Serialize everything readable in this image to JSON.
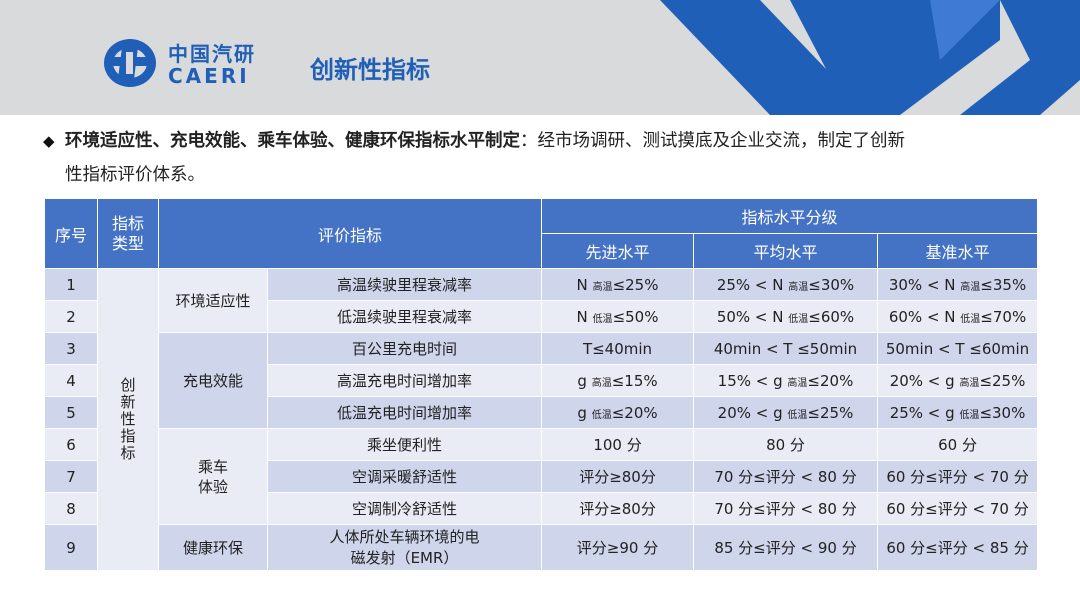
{
  "header": {
    "brand_cn": "中国汽研",
    "brand_en": "CAERI",
    "slide_title": "创新性指标"
  },
  "intro": {
    "bold": "环境适应性、充电效能、乘车体验、健康环保指标水平制定",
    "text": "：经市场调研、测试摸底及企业交流，制定了创新",
    "text2": "性指标评价体系。"
  },
  "table": {
    "headers": {
      "no": "序号",
      "type": "指标类型",
      "indicator": "评价指标",
      "level_group": "指标水平分级",
      "advanced": "先进水平",
      "average": "平均水平",
      "baseline": "基准水平"
    },
    "type_label": "创新性指标",
    "groups": {
      "env": "环境适应性",
      "charge": "充电效能",
      "ride": "乘车体验",
      "health": "健康环保"
    },
    "rows": [
      {
        "no": "1",
        "name": "高温续驶里程衰减率",
        "adv": [
          "N",
          "高温",
          "≤25%"
        ],
        "avg": [
          "25% < N",
          "高温",
          "≤30%"
        ],
        "base": [
          "30% < N",
          "高温",
          "≤35%"
        ]
      },
      {
        "no": "2",
        "name": "低温续驶里程衰减率",
        "adv": [
          "N",
          "低温",
          "≤50%"
        ],
        "avg": [
          "50% < N",
          "低温",
          "≤60%"
        ],
        "base": [
          "60% < N",
          "低温",
          "≤70%"
        ]
      },
      {
        "no": "3",
        "name": "百公里充电时间",
        "adv": [
          "T≤40min"
        ],
        "avg": [
          "40min < T ≤50min"
        ],
        "base": [
          "50min < T ≤60min"
        ]
      },
      {
        "no": "4",
        "name": "高温充电时间增加率",
        "adv": [
          "g",
          "高温",
          "≤15%"
        ],
        "avg": [
          "15% < g",
          "高温",
          "≤20%"
        ],
        "base": [
          "20% < g",
          "高温",
          "≤25%"
        ]
      },
      {
        "no": "5",
        "name": "低温充电时间增加率",
        "adv": [
          "g",
          "低温",
          "≤20%"
        ],
        "avg": [
          "20% < g",
          "低温",
          "≤25%"
        ],
        "base": [
          "25% < g",
          "低温",
          "≤30%"
        ]
      },
      {
        "no": "6",
        "name": "乘坐便利性",
        "adv": [
          "100 分"
        ],
        "avg": [
          "80 分"
        ],
        "base": [
          "60 分"
        ]
      },
      {
        "no": "7",
        "name": "空调采暖舒适性",
        "adv": [
          "评分≥80分"
        ],
        "avg": [
          "70 分≤评分 < 80 分"
        ],
        "base": [
          "60 分≤评分 < 70 分"
        ]
      },
      {
        "no": "8",
        "name": "空调制冷舒适性",
        "adv": [
          "评分≥80分"
        ],
        "avg": [
          "70 分≤评分 < 80 分"
        ],
        "base": [
          "60 分≤评分 < 70 分"
        ]
      },
      {
        "no": "9",
        "name": "人体所处车辆环境的电磁发射（EMR）",
        "adv": [
          "评分≥90 分"
        ],
        "avg": [
          "85 分≤评分 < 90 分"
        ],
        "base": [
          "60 分≤评分 < 85 分"
        ]
      }
    ]
  },
  "colors": {
    "brand_blue": "#1f5fb8",
    "header_blue": "#4472c4",
    "row_dark": "#cfd5ea",
    "row_light": "#e9ebf5",
    "banner_gray": "#d9dadb"
  }
}
